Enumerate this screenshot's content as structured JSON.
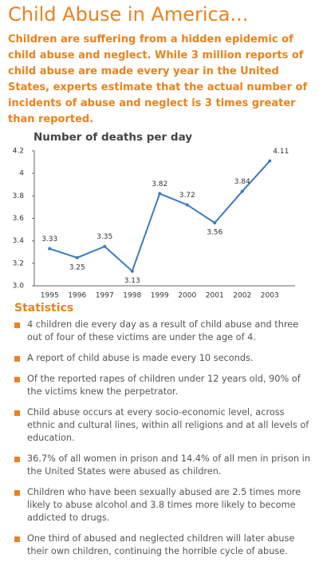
{
  "title": "Child Abuse in America...",
  "intro": "Children are suffering from a hidden epidemic of child abuse and neglect. While 3 million reports of child abuse are made every year in the United States, experts estimate that the actual number of incidents of abuse and neglect is 3 times greater than reported.",
  "chart_data": {
    "type": "line",
    "title": "Number of deaths per day",
    "categories": [
      "1995",
      "1996",
      "1997",
      "1998",
      "1999",
      "2000",
      "2001",
      "2002",
      "2003"
    ],
    "values": [
      3.33,
      3.25,
      3.35,
      3.13,
      3.82,
      3.72,
      3.56,
      3.84,
      4.11
    ],
    "color": "#3b7bbf",
    "ylim": [
      3.0,
      4.2
    ],
    "yticks": [
      {
        "value": 3.0,
        "label": "3.0"
      },
      3.2,
      3.4,
      3.6,
      3.8,
      4,
      4.2
    ]
  },
  "statistics": {
    "heading": "Statistics",
    "items": [
      "4 children die every day as a result of child abuse and three out of four of these victims are under the age of 4.",
      "A report of child abuse is made every 10 seconds.",
      "Of the reported rapes of children under 12 years old, 90% of the victims knew the perpetrator.",
      "Child abuse occurs at every socio-economic level, across ethnic and cultural lines, within all religions and at all levels of education.",
      "36.7% of all women in prison and 14.4% of all men in prison in the United States were abused as children.",
      "Children who have been sexually abused are 2.5 times more likely to abuse alcohol and 3.8 times more likely to become addicted to drugs.",
      "One third of abused and neglected children will later abuse their own children, continuing the horrible cycle of abuse."
    ]
  }
}
